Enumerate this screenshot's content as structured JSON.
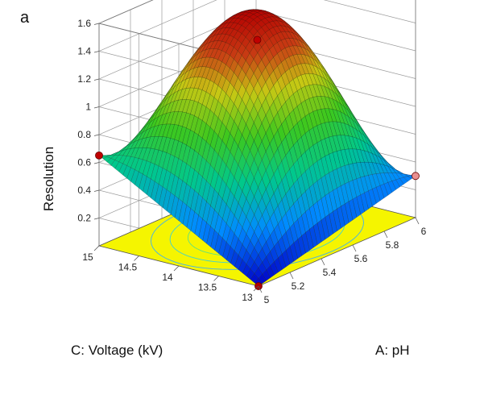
{
  "panel_label": "a",
  "chart_data": {
    "type": "surface",
    "title": "",
    "z_label": "Resolution",
    "x_label": "A: pH",
    "y_label": "C: Voltage (kV)",
    "x_range": [
      5,
      6
    ],
    "y_range": [
      13,
      15
    ],
    "z_range": [
      0,
      1.6
    ],
    "x_ticks": [
      "5",
      "5.2",
      "5.4",
      "5.6",
      "5.8",
      "6"
    ],
    "y_ticks": [
      "13",
      "13.5",
      "14",
      "14.5",
      "15"
    ],
    "z_ticks": [
      "0.2",
      "0.4",
      "0.6",
      "0.8",
      "1",
      "1.2",
      "1.4",
      "1.6"
    ],
    "surface_peak": {
      "x": 5.5,
      "y": 14,
      "z": 1.6
    },
    "surface_corners": [
      {
        "x": 5,
        "y": 13,
        "z": 0.0
      },
      {
        "x": 6,
        "y": 13,
        "z": 0.3
      },
      {
        "x": 5,
        "y": 15,
        "z": 0.65
      },
      {
        "x": 6,
        "y": 15,
        "z": 0.2
      }
    ],
    "design_points": [
      {
        "x": 5.5,
        "y": 14,
        "z": 1.38
      },
      {
        "x": 5,
        "y": 15,
        "z": 0.65
      },
      {
        "x": 6,
        "y": 13,
        "z": 0.3
      },
      {
        "x": 5,
        "y": 13,
        "z": 0.0
      }
    ],
    "floor_contour_color": "#f5f500",
    "grid": true
  }
}
